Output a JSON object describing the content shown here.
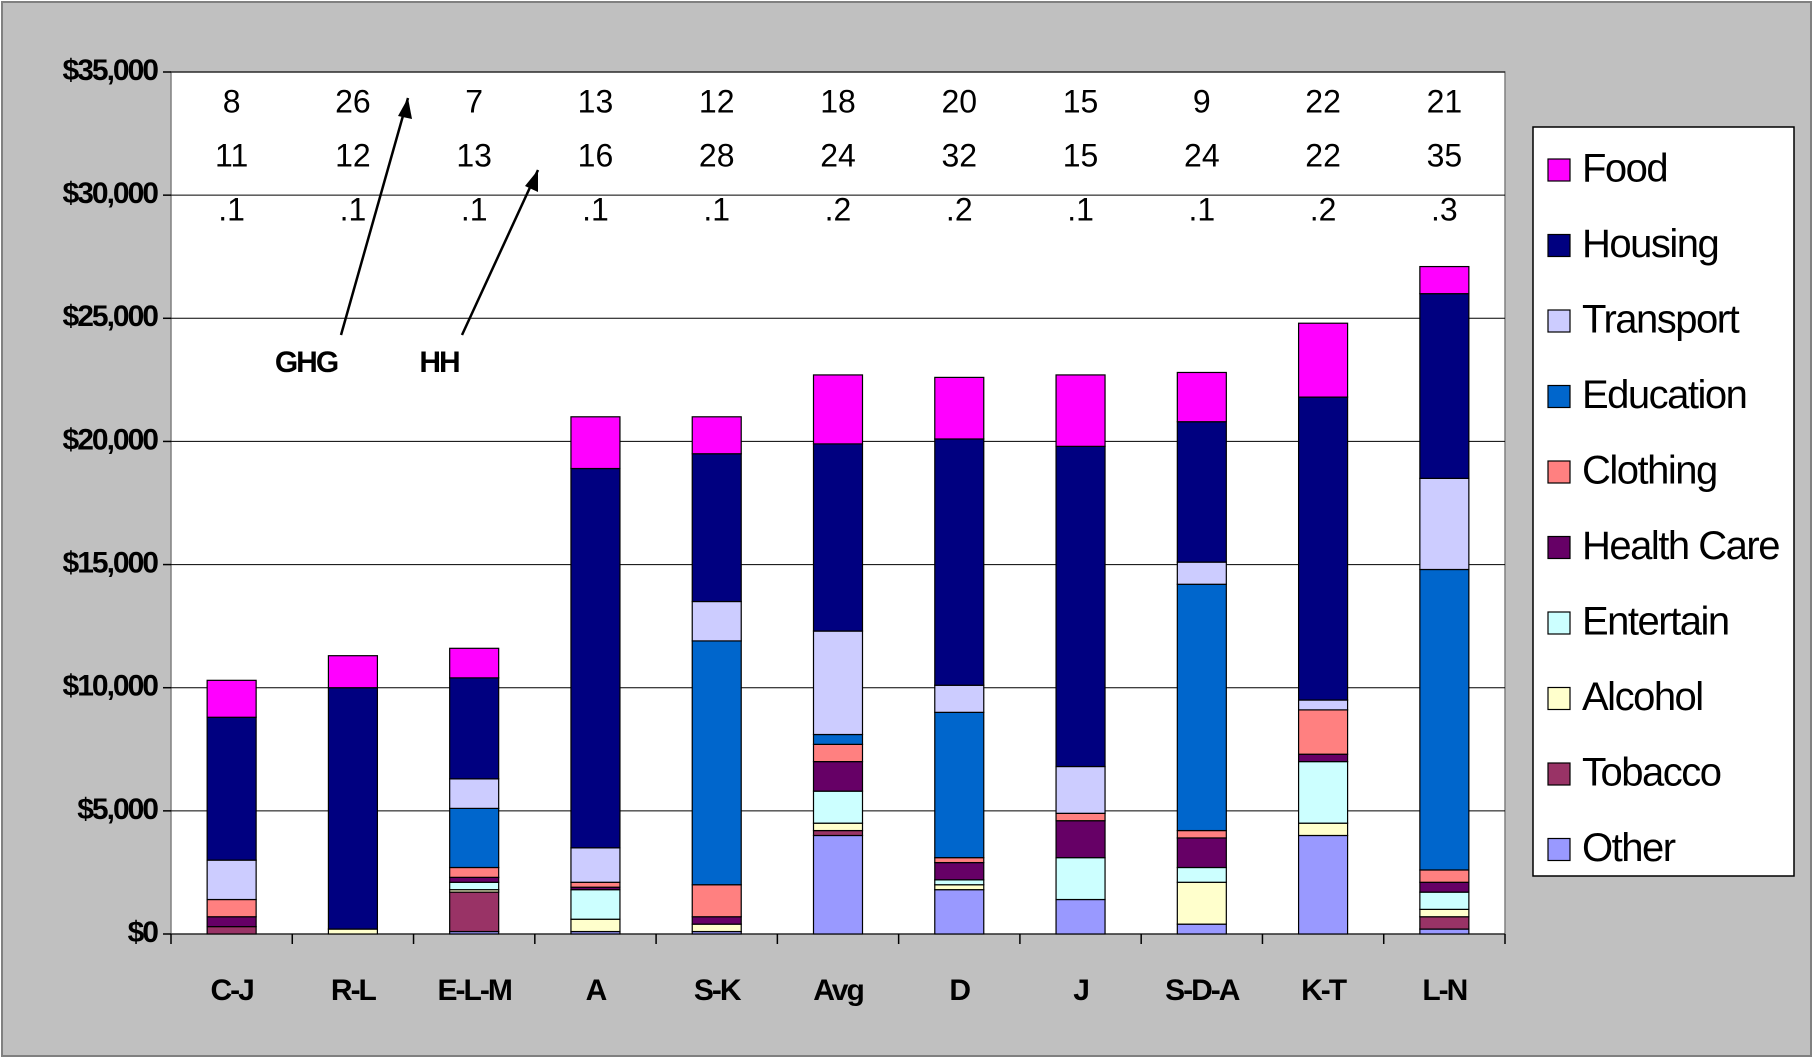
{
  "chart_data": {
    "type": "stacked-bar",
    "categories": [
      "C-J",
      "R-L",
      "E-L-M",
      "A",
      "S-K",
      "Avg",
      "D",
      "J",
      "S-D-A",
      "K-T",
      "L-N"
    ],
    "series": [
      {
        "name": "Other",
        "color": "#9999ff",
        "values": [
          0,
          0,
          100,
          100,
          100,
          4000,
          1800,
          1400,
          400,
          4000,
          200
        ]
      },
      {
        "name": "Tobacco",
        "color": "#993366",
        "values": [
          300,
          0,
          1600,
          0,
          0,
          200,
          0,
          0,
          0,
          0,
          500
        ]
      },
      {
        "name": "Alcohol",
        "color": "#ffffcc",
        "values": [
          0,
          200,
          100,
          500,
          300,
          300,
          200,
          0,
          1700,
          500,
          300
        ]
      },
      {
        "name": "Entertain",
        "color": "#ccffff",
        "values": [
          0,
          0,
          300,
          1200,
          0,
          1300,
          200,
          1700,
          600,
          2500,
          700
        ]
      },
      {
        "name": "Health Care",
        "color": "#660066",
        "values": [
          400,
          0,
          200,
          100,
          300,
          1200,
          700,
          1500,
          1200,
          300,
          400
        ]
      },
      {
        "name": "Clothing",
        "color": "#ff8080",
        "values": [
          700,
          0,
          400,
          200,
          1300,
          700,
          200,
          300,
          300,
          1800,
          500
        ]
      },
      {
        "name": "Education",
        "color": "#0066cc",
        "values": [
          0,
          0,
          2400,
          0,
          9900,
          400,
          5900,
          0,
          10000,
          0,
          12200
        ]
      },
      {
        "name": "Transport",
        "color": "#ccccff",
        "values": [
          1600,
          0,
          1200,
          1400,
          1600,
          4200,
          1100,
          1900,
          900,
          400,
          3700
        ]
      },
      {
        "name": "Housing",
        "color": "#000080",
        "values": [
          5800,
          9800,
          4100,
          15400,
          6000,
          7600,
          10000,
          13000,
          5700,
          12300,
          7500
        ]
      },
      {
        "name": "Food",
        "color": "#ff00ff",
        "values": [
          1500,
          1300,
          1200,
          2100,
          1500,
          2800,
          2500,
          2900,
          2000,
          3000,
          1100
        ]
      }
    ],
    "annotation_rows": [
      [
        "8",
        "26",
        "7",
        "13",
        "12",
        "18",
        "20",
        "15",
        "9",
        "22",
        "21"
      ],
      [
        "11",
        "12",
        "13",
        "16",
        "28",
        "24",
        "32",
        "15",
        "24",
        "22",
        "35"
      ],
      [
        ".1",
        ".1",
        ".1",
        ".1",
        ".1",
        ".2",
        ".2",
        ".1",
        ".1",
        ".2",
        ".3"
      ]
    ],
    "annotations": [
      "GHG",
      "HH"
    ],
    "ylim": [
      0,
      35000
    ],
    "yticks": [
      {
        "value": 0,
        "label": "$0"
      },
      {
        "value": 5000,
        "label": "$5,000"
      },
      {
        "value": 10000,
        "label": "$10,000"
      },
      {
        "value": 15000,
        "label": "$15,000"
      },
      {
        "value": 20000,
        "label": "$20,000"
      },
      {
        "value": 25000,
        "label": "$25,000"
      },
      {
        "value": 30000,
        "label": "$30,000"
      },
      {
        "value": 35000,
        "label": "$35,000"
      }
    ],
    "grid": true,
    "legend": "right"
  }
}
